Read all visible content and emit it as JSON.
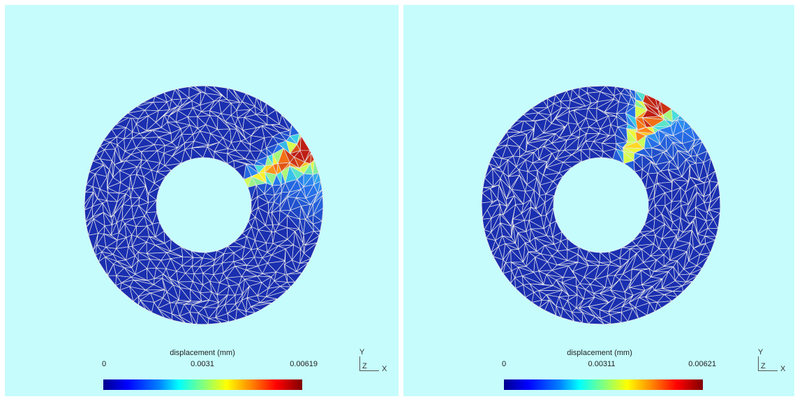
{
  "panels": [
    {
      "legend_title": "displacement (mm)",
      "tick_min": "0",
      "tick_mid": "0.0031",
      "tick_max": "0.00619",
      "hotspot_angle_deg": 28,
      "axes": {
        "y": "Y",
        "z": "Z",
        "x": "X"
      }
    },
    {
      "legend_title": "displacement (mm)",
      "tick_min": "0",
      "tick_mid": "0.00311",
      "tick_max": "0.00621",
      "hotspot_angle_deg": 62,
      "axes": {
        "y": "Y",
        "z": "Z",
        "x": "X"
      }
    }
  ],
  "colors": {
    "background": "#c6fcfc",
    "mesh_fill": "#1a2fb0",
    "mesh_lines": "#e8e8e8"
  }
}
